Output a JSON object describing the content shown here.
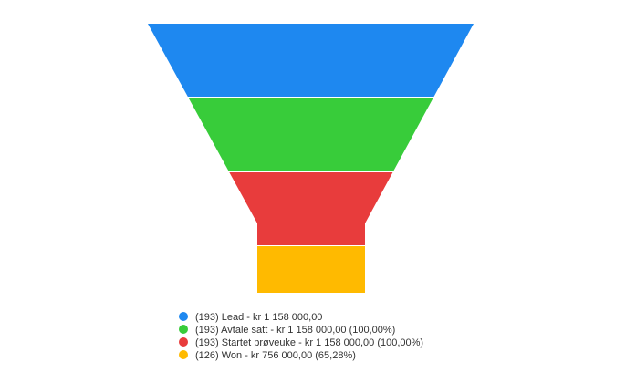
{
  "chart_data": {
    "type": "funnel",
    "categories": [
      "(193) Lead - kr 1 158 000,00",
      "(193) Avtale satt - kr 1 158 000,00 (100,00%)",
      "(193) Startet prøveuke - kr 1 158 000,00 (100,00%)",
      "(126) Won - kr 756 000,00 (65,28%)"
    ],
    "values": [
      193,
      193,
      193,
      126
    ],
    "colors": [
      "#1e88f0",
      "#38cc3a",
      "#e83c3c",
      "#ffba00"
    ]
  }
}
